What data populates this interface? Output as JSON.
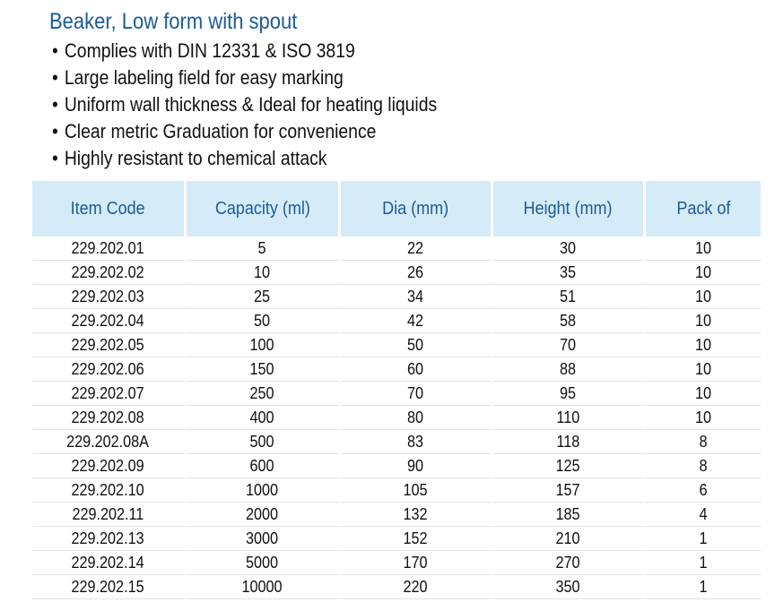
{
  "title": "Beaker, Low form with spout",
  "bullets": [
    "Complies with DIN 12331 & ISO 3819",
    "Large labeling field for easy marking",
    "Uniform wall thickness & Ideal for heating liquids",
    "Clear metric Graduation for convenience",
    "Highly resistant to chemical attack"
  ],
  "table": {
    "headers": [
      "Item Code",
      "Capacity (ml)",
      "Dia (mm)",
      "Height (mm)",
      "Pack of"
    ],
    "rows": [
      [
        "229.202.01",
        "5",
        "22",
        "30",
        "10"
      ],
      [
        "229.202.02",
        "10",
        "26",
        "35",
        "10"
      ],
      [
        "229.202.03",
        "25",
        "34",
        "51",
        "10"
      ],
      [
        "229.202.04",
        "50",
        "42",
        "58",
        "10"
      ],
      [
        "229.202.05",
        "100",
        "50",
        "70",
        "10"
      ],
      [
        "229.202.06",
        "150",
        "60",
        "88",
        "10"
      ],
      [
        "229.202.07",
        "250",
        "70",
        "95",
        "10"
      ],
      [
        "229.202.08",
        "400",
        "80",
        "110",
        "10"
      ],
      [
        "229.202.08A",
        "500",
        "83",
        "118",
        "8"
      ],
      [
        "229.202.09",
        "600",
        "90",
        "125",
        "8"
      ],
      [
        "229.202.10",
        "1000",
        "105",
        "157",
        "6"
      ],
      [
        "229.202.11",
        "2000",
        "132",
        "185",
        "4"
      ],
      [
        "229.202.13",
        "3000",
        "152",
        "210",
        "1"
      ],
      [
        "229.202.14",
        "5000",
        "170",
        "270",
        "1"
      ],
      [
        "229.202.15",
        "10000",
        "220",
        "350",
        "1"
      ]
    ]
  }
}
